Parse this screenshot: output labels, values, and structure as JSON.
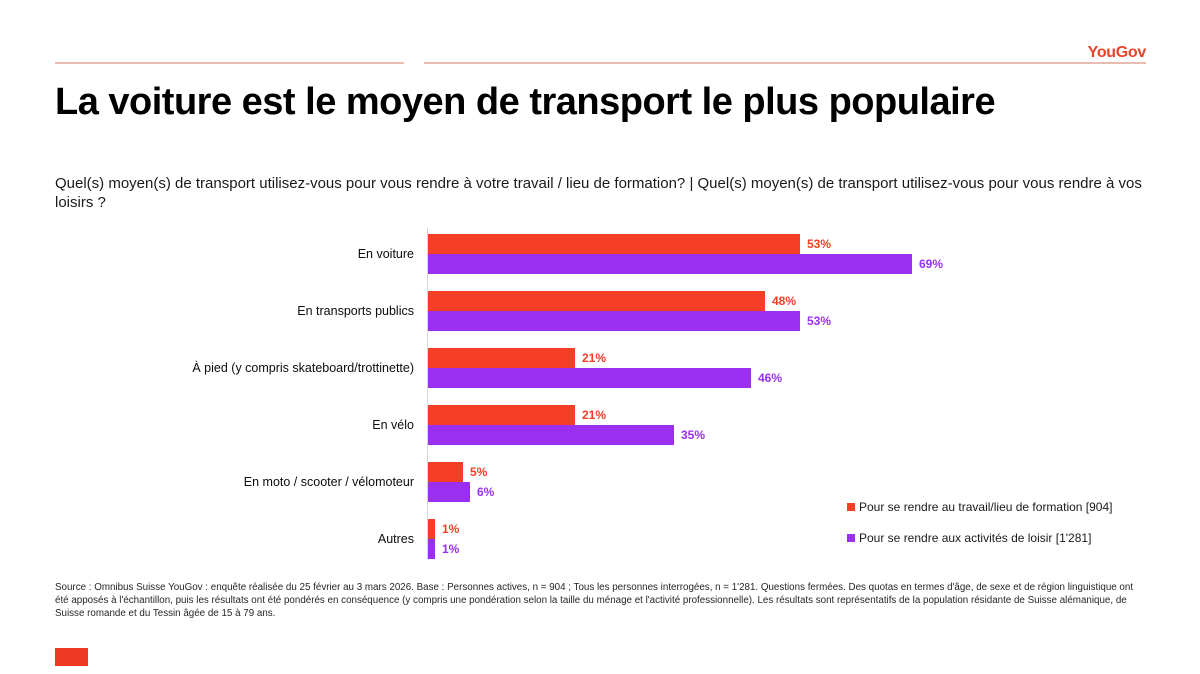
{
  "page": {
    "brand_logo": "YouGov",
    "title": "La voiture est le moyen de transport le plus populaire",
    "subtitle": "Quel(s) moyen(s) de transport utilisez-vous pour vous rendre à votre travail / lieu de formation? | Quel(s) moyen(s) de transport utilisez-vous pour vous rendre à vos loisirs ?"
  },
  "chart_data": {
    "type": "bar",
    "orientation": "horizontal",
    "categories": [
      "En voiture",
      "En transports publics",
      "À pied (y compris skateboard/trottinette)",
      "En vélo",
      "En moto / scooter / vélomoteur",
      "Autres"
    ],
    "series": [
      {
        "name": "Pour se rendre au travail/lieu de formation [904]",
        "color": "#f43e26",
        "values": [
          53,
          48,
          21,
          21,
          5,
          1
        ]
      },
      {
        "name": "Pour se rendre aux activités de loisir [1'281]",
        "color": "#9b2ff0",
        "values": [
          69,
          53,
          46,
          35,
          6,
          1
        ]
      }
    ],
    "value_suffix": "%",
    "xlim": [
      0,
      100
    ],
    "grid": false,
    "data_labels": true,
    "legend_position": "bottom-right"
  },
  "legend": {
    "items": [
      {
        "label": "Pour se rendre au travail/lieu de formation [904]",
        "color": "#f43e26"
      },
      {
        "label": "Pour se rendre aux activités de loisir [1'281]",
        "color": "#9b2ff0"
      }
    ]
  },
  "source": {
    "text": "Source : Omnibus Suisse YouGov : enquête réalisée du 25 février au 3 mars 2026. Base : Personnes actives, n = 904 ; Tous les personnes interrogées, n = 1'281. Questions fermées. Des quotas en termes d'âge, de sexe et de région linguistique ont été apposés à l'échantillon, puis les résultats ont été pondérés en conséquence (y compris une pondération selon la taille du ménage et l'activité professionnelle). Les résultats sont représentatifs de la population résidante de Suisse alémanique, de Suisse romande et du Tessin âgée de 15 à 79 ans."
  },
  "colors": {
    "accent_red": "#f43e26",
    "accent_purple": "#9b2ff0",
    "brand_red": "#e8432c",
    "rule_pink": "#e9bcb2",
    "axis_gray": "#d6d6d6"
  }
}
